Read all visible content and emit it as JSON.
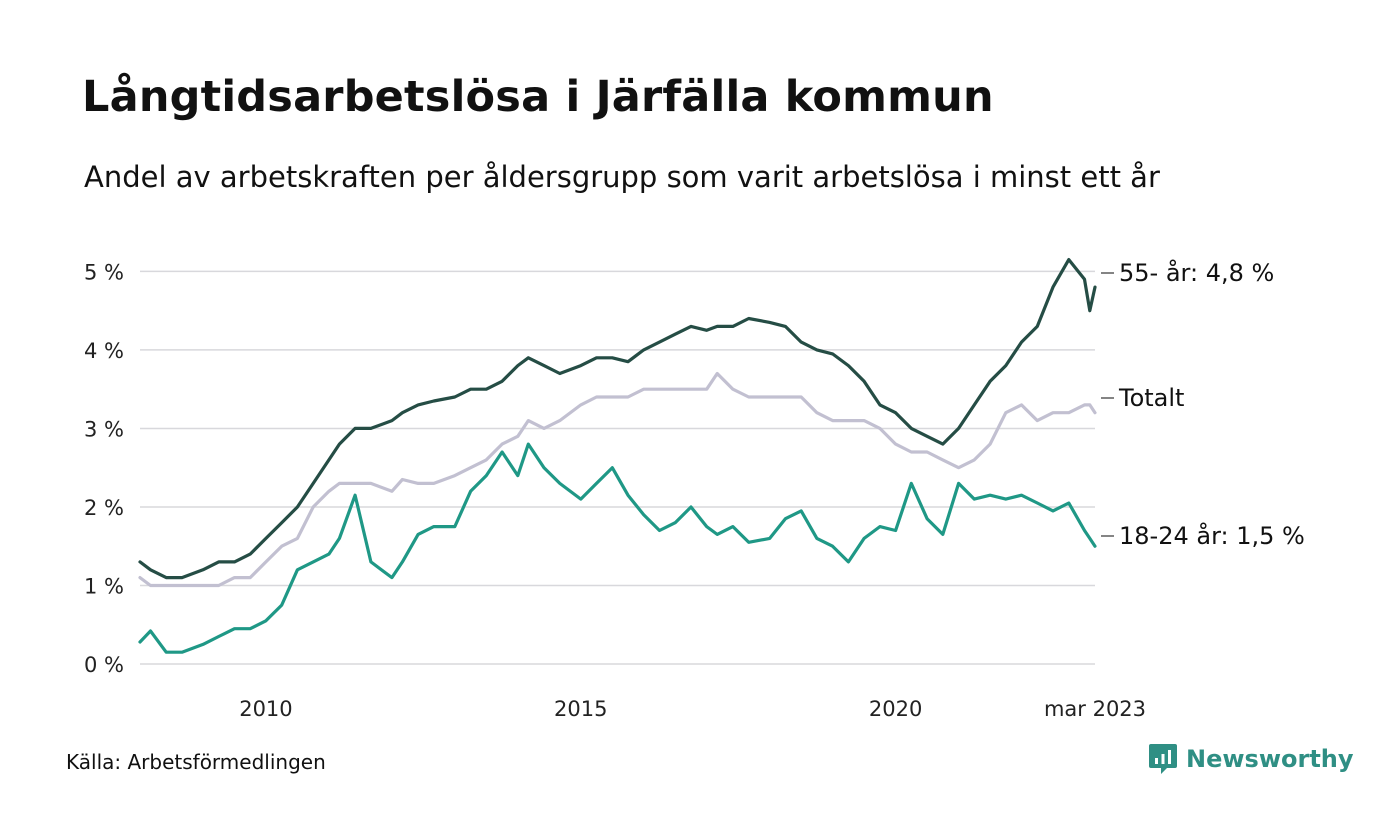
{
  "title": "Långtidsarbetslösa i Järfälla kommun",
  "subtitle": "Andel av arbetskraften per åldersgrupp som varit arbetslösa i minst ett år",
  "source": "Källa: Arbetsförmedlingen",
  "brand": {
    "name": "Newsworthy",
    "logo_icon": "bar-chart-bubble-icon",
    "color": "#2f8f84"
  },
  "chart_data": {
    "type": "line",
    "x_start": "2008-01",
    "x_end": "2023-03",
    "x_tick_labels": [
      {
        "x": "2010-01",
        "label": "2010"
      },
      {
        "x": "2015-01",
        "label": "2015"
      },
      {
        "x": "2020-01",
        "label": "2020"
      },
      {
        "x": "2023-03",
        "label": "mar 2023"
      }
    ],
    "y_ticks": [
      0,
      1,
      2,
      3,
      4,
      5
    ],
    "y_tick_labels": [
      "0 %",
      "1 %",
      "2 %",
      "3 %",
      "4 %",
      "5 %"
    ],
    "ylim": [
      0,
      5.4
    ],
    "grid": true,
    "series": [
      {
        "name": "Totalt",
        "end_label": "Totalt",
        "color": "#c2c0d1",
        "points": [
          [
            "2008-01",
            1.1
          ],
          [
            "2008-03",
            1.0
          ],
          [
            "2008-06",
            1.0
          ],
          [
            "2008-09",
            1.0
          ],
          [
            "2009-01",
            1.0
          ],
          [
            "2009-04",
            1.0
          ],
          [
            "2009-07",
            1.1
          ],
          [
            "2009-10",
            1.1
          ],
          [
            "2010-01",
            1.3
          ],
          [
            "2010-04",
            1.5
          ],
          [
            "2010-07",
            1.6
          ],
          [
            "2010-10",
            2.0
          ],
          [
            "2011-01",
            2.2
          ],
          [
            "2011-03",
            2.3
          ],
          [
            "2011-06",
            2.3
          ],
          [
            "2011-09",
            2.3
          ],
          [
            "2012-01",
            2.2
          ],
          [
            "2012-03",
            2.35
          ],
          [
            "2012-06",
            2.3
          ],
          [
            "2012-09",
            2.3
          ],
          [
            "2013-01",
            2.4
          ],
          [
            "2013-04",
            2.5
          ],
          [
            "2013-07",
            2.6
          ],
          [
            "2013-10",
            2.8
          ],
          [
            "2014-01",
            2.9
          ],
          [
            "2014-03",
            3.1
          ],
          [
            "2014-06",
            3.0
          ],
          [
            "2014-09",
            3.1
          ],
          [
            "2015-01",
            3.3
          ],
          [
            "2015-04",
            3.4
          ],
          [
            "2015-07",
            3.4
          ],
          [
            "2015-10",
            3.4
          ],
          [
            "2016-01",
            3.5
          ],
          [
            "2016-04",
            3.5
          ],
          [
            "2016-07",
            3.5
          ],
          [
            "2016-10",
            3.5
          ],
          [
            "2017-01",
            3.5
          ],
          [
            "2017-03",
            3.7
          ],
          [
            "2017-06",
            3.5
          ],
          [
            "2017-09",
            3.4
          ],
          [
            "2018-01",
            3.4
          ],
          [
            "2018-04",
            3.4
          ],
          [
            "2018-07",
            3.4
          ],
          [
            "2018-10",
            3.2
          ],
          [
            "2019-01",
            3.1
          ],
          [
            "2019-04",
            3.1
          ],
          [
            "2019-07",
            3.1
          ],
          [
            "2019-10",
            3.0
          ],
          [
            "2020-01",
            2.8
          ],
          [
            "2020-04",
            2.7
          ],
          [
            "2020-07",
            2.7
          ],
          [
            "2020-10",
            2.6
          ],
          [
            "2021-01",
            2.5
          ],
          [
            "2021-04",
            2.6
          ],
          [
            "2021-07",
            2.8
          ],
          [
            "2021-10",
            3.2
          ],
          [
            "2022-01",
            3.3
          ],
          [
            "2022-04",
            3.1
          ],
          [
            "2022-07",
            3.2
          ],
          [
            "2022-10",
            3.2
          ],
          [
            "2023-01",
            3.3
          ],
          [
            "2023-02",
            3.3
          ],
          [
            "2023-03",
            3.2
          ]
        ]
      },
      {
        "name": "55- år",
        "end_label": "55- år: 4,8 %",
        "color": "#254d45",
        "points": [
          [
            "2008-01",
            1.3
          ],
          [
            "2008-03",
            1.2
          ],
          [
            "2008-06",
            1.1
          ],
          [
            "2008-09",
            1.1
          ],
          [
            "2009-01",
            1.2
          ],
          [
            "2009-04",
            1.3
          ],
          [
            "2009-07",
            1.3
          ],
          [
            "2009-10",
            1.4
          ],
          [
            "2010-01",
            1.6
          ],
          [
            "2010-04",
            1.8
          ],
          [
            "2010-07",
            2.0
          ],
          [
            "2010-10",
            2.3
          ],
          [
            "2011-01",
            2.6
          ],
          [
            "2011-03",
            2.8
          ],
          [
            "2011-06",
            3.0
          ],
          [
            "2011-09",
            3.0
          ],
          [
            "2012-01",
            3.1
          ],
          [
            "2012-03",
            3.2
          ],
          [
            "2012-06",
            3.3
          ],
          [
            "2012-09",
            3.35
          ],
          [
            "2013-01",
            3.4
          ],
          [
            "2013-04",
            3.5
          ],
          [
            "2013-07",
            3.5
          ],
          [
            "2013-10",
            3.6
          ],
          [
            "2014-01",
            3.8
          ],
          [
            "2014-03",
            3.9
          ],
          [
            "2014-06",
            3.8
          ],
          [
            "2014-09",
            3.7
          ],
          [
            "2015-01",
            3.8
          ],
          [
            "2015-04",
            3.9
          ],
          [
            "2015-07",
            3.9
          ],
          [
            "2015-10",
            3.85
          ],
          [
            "2016-01",
            4.0
          ],
          [
            "2016-04",
            4.1
          ],
          [
            "2016-07",
            4.2
          ],
          [
            "2016-10",
            4.3
          ],
          [
            "2017-01",
            4.25
          ],
          [
            "2017-03",
            4.3
          ],
          [
            "2017-06",
            4.3
          ],
          [
            "2017-09",
            4.4
          ],
          [
            "2018-01",
            4.35
          ],
          [
            "2018-04",
            4.3
          ],
          [
            "2018-07",
            4.1
          ],
          [
            "2018-10",
            4.0
          ],
          [
            "2019-01",
            3.95
          ],
          [
            "2019-04",
            3.8
          ],
          [
            "2019-07",
            3.6
          ],
          [
            "2019-10",
            3.3
          ],
          [
            "2020-01",
            3.2
          ],
          [
            "2020-04",
            3.0
          ],
          [
            "2020-07",
            2.9
          ],
          [
            "2020-10",
            2.8
          ],
          [
            "2021-01",
            3.0
          ],
          [
            "2021-04",
            3.3
          ],
          [
            "2021-07",
            3.6
          ],
          [
            "2021-10",
            3.8
          ],
          [
            "2022-01",
            4.1
          ],
          [
            "2022-04",
            4.3
          ],
          [
            "2022-07",
            4.8
          ],
          [
            "2022-10",
            5.15
          ],
          [
            "2023-01",
            4.9
          ],
          [
            "2023-02",
            4.5
          ],
          [
            "2023-03",
            4.8
          ]
        ]
      },
      {
        "name": "18-24 år",
        "end_label": "18-24 år: 1,5 %",
        "color": "#1f9886",
        "points": [
          [
            "2008-01",
            0.28
          ],
          [
            "2008-03",
            0.42
          ],
          [
            "2008-06",
            0.15
          ],
          [
            "2008-09",
            0.15
          ],
          [
            "2009-01",
            0.25
          ],
          [
            "2009-04",
            0.35
          ],
          [
            "2009-07",
            0.45
          ],
          [
            "2009-10",
            0.45
          ],
          [
            "2010-01",
            0.55
          ],
          [
            "2010-04",
            0.75
          ],
          [
            "2010-07",
            1.2
          ],
          [
            "2010-10",
            1.3
          ],
          [
            "2011-01",
            1.4
          ],
          [
            "2011-03",
            1.6
          ],
          [
            "2011-06",
            2.15
          ],
          [
            "2011-09",
            1.3
          ],
          [
            "2012-01",
            1.1
          ],
          [
            "2012-03",
            1.3
          ],
          [
            "2012-06",
            1.65
          ],
          [
            "2012-09",
            1.75
          ],
          [
            "2013-01",
            1.75
          ],
          [
            "2013-04",
            2.2
          ],
          [
            "2013-07",
            2.4
          ],
          [
            "2013-10",
            2.7
          ],
          [
            "2014-01",
            2.4
          ],
          [
            "2014-03",
            2.8
          ],
          [
            "2014-06",
            2.5
          ],
          [
            "2014-09",
            2.3
          ],
          [
            "2015-01",
            2.1
          ],
          [
            "2015-04",
            2.3
          ],
          [
            "2015-07",
            2.5
          ],
          [
            "2015-10",
            2.15
          ],
          [
            "2016-01",
            1.9
          ],
          [
            "2016-04",
            1.7
          ],
          [
            "2016-07",
            1.8
          ],
          [
            "2016-10",
            2.0
          ],
          [
            "2017-01",
            1.75
          ],
          [
            "2017-03",
            1.65
          ],
          [
            "2017-06",
            1.75
          ],
          [
            "2017-09",
            1.55
          ],
          [
            "2018-01",
            1.6
          ],
          [
            "2018-04",
            1.85
          ],
          [
            "2018-07",
            1.95
          ],
          [
            "2018-10",
            1.6
          ],
          [
            "2019-01",
            1.5
          ],
          [
            "2019-04",
            1.3
          ],
          [
            "2019-07",
            1.6
          ],
          [
            "2019-10",
            1.75
          ],
          [
            "2020-01",
            1.7
          ],
          [
            "2020-04",
            2.3
          ],
          [
            "2020-07",
            1.85
          ],
          [
            "2020-10",
            1.65
          ],
          [
            "2021-01",
            2.3
          ],
          [
            "2021-04",
            2.1
          ],
          [
            "2021-07",
            2.15
          ],
          [
            "2021-10",
            2.1
          ],
          [
            "2022-01",
            2.15
          ],
          [
            "2022-04",
            2.05
          ],
          [
            "2022-07",
            1.95
          ],
          [
            "2022-10",
            2.05
          ],
          [
            "2023-01",
            1.7
          ],
          [
            "2023-02",
            1.6
          ],
          [
            "2023-03",
            1.5
          ]
        ]
      }
    ]
  }
}
